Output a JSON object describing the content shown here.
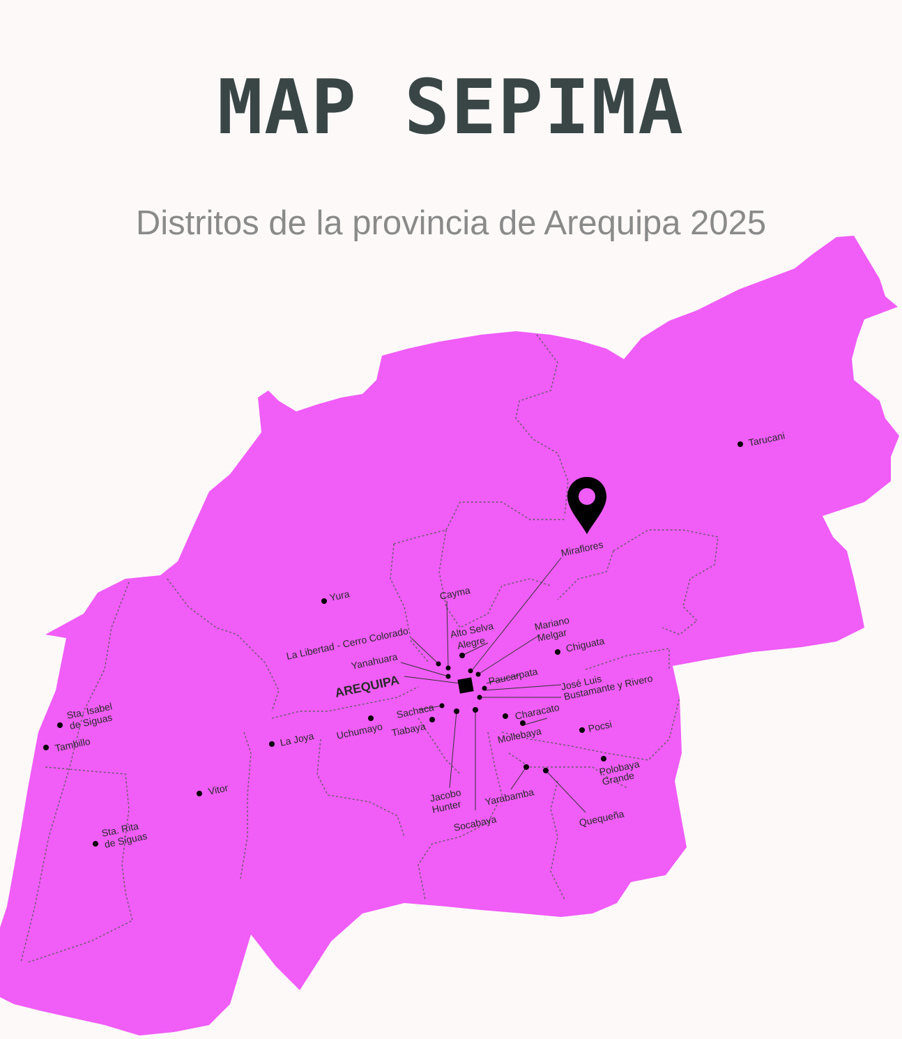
{
  "header": {
    "title": "MAP SEPIMA",
    "subtitle": "Distritos de la provincia  de Arequipa 2025"
  },
  "map": {
    "fill_color": "#f05df7",
    "marker_color": "#000000",
    "capital_label": "AREQUIPA",
    "districts": [
      "Tarucani",
      "Miraflores",
      "Yura",
      "Cayma",
      "Alto Selva",
      "Alegre",
      "Mariano",
      "Melgar",
      "La Libertad - Cerro Colorado",
      "Chiguata",
      "Yanahuara",
      "Paucarpata",
      "José Luis",
      "Bustamante y Rivero",
      "Sta. Isabel",
      "de Siguas",
      "Sachaca",
      "Characato",
      "Tambillo",
      "La Joya",
      "Uchumayo",
      "Tiabaya",
      "Mollebaya",
      "Pocsi",
      "Polobaya",
      "Grande",
      "Vitor",
      "Yarabamba",
      "Jacobo",
      "Hunter",
      "Quequeña",
      "Socabaya",
      "Sta. Rita",
      "de Siguas"
    ]
  }
}
